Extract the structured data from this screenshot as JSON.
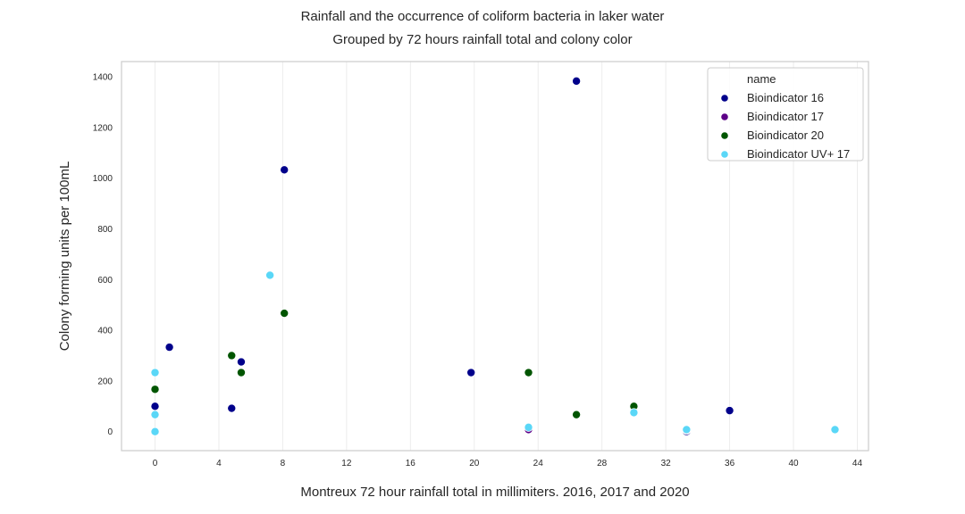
{
  "chart_data": {
    "type": "scatter",
    "title": "Rainfall and the occurrence of coliform bacteria in laker water",
    "subtitle": "Grouped by 72 hours rainfall total and colony color",
    "xlabel": "Montreux 72 hour rainfall total in millimiters. 2016, 2017 and 2020",
    "ylabel": "Colony forming units per 100mL",
    "xlim": [
      -2.1,
      44.7
    ],
    "ylim": [
      -75,
      1460
    ],
    "xticks": [
      0,
      4,
      8,
      12,
      16,
      20,
      24,
      28,
      32,
      36,
      40,
      44
    ],
    "yticks": [
      0,
      200,
      400,
      600,
      800,
      1000,
      1200,
      1400
    ],
    "grid": "vertical",
    "legend": {
      "title": "name",
      "placement": "top-right"
    },
    "series": [
      {
        "name": "Bioindicator 16",
        "color": "#00008b",
        "points": [
          {
            "x": 0,
            "y": 100
          },
          {
            "x": 0.9,
            "y": 333
          },
          {
            "x": 4.8,
            "y": 92
          },
          {
            "x": 5.4,
            "y": 275
          },
          {
            "x": 8.1,
            "y": 1033
          },
          {
            "x": 19.8,
            "y": 233
          },
          {
            "x": 26.4,
            "y": 1383
          },
          {
            "x": 33.3,
            "y": 0
          },
          {
            "x": 36,
            "y": 83
          }
        ]
      },
      {
        "name": "Bioindicator 17",
        "color": "#5c0087",
        "points": [
          {
            "x": 23.4,
            "y": 8
          },
          {
            "x": 33.3,
            "y": 5
          }
        ]
      },
      {
        "name": "Bioindicator 20",
        "color": "#005500",
        "points": [
          {
            "x": 0,
            "y": 167
          },
          {
            "x": 4.8,
            "y": 300
          },
          {
            "x": 5.4,
            "y": 233
          },
          {
            "x": 8.1,
            "y": 467
          },
          {
            "x": 23.4,
            "y": 233
          },
          {
            "x": 26.4,
            "y": 67
          },
          {
            "x": 30,
            "y": 100
          }
        ]
      },
      {
        "name": "Bioindicator UV+ 17",
        "color": "#5ad7f7",
        "points": [
          {
            "x": 0,
            "y": 233
          },
          {
            "x": 0,
            "y": 67
          },
          {
            "x": 0,
            "y": 0
          },
          {
            "x": 7.2,
            "y": 617
          },
          {
            "x": 23.4,
            "y": 17
          },
          {
            "x": 30,
            "y": 75
          },
          {
            "x": 33.3,
            "y": 8
          },
          {
            "x": 42.6,
            "y": 8
          }
        ]
      }
    ]
  }
}
